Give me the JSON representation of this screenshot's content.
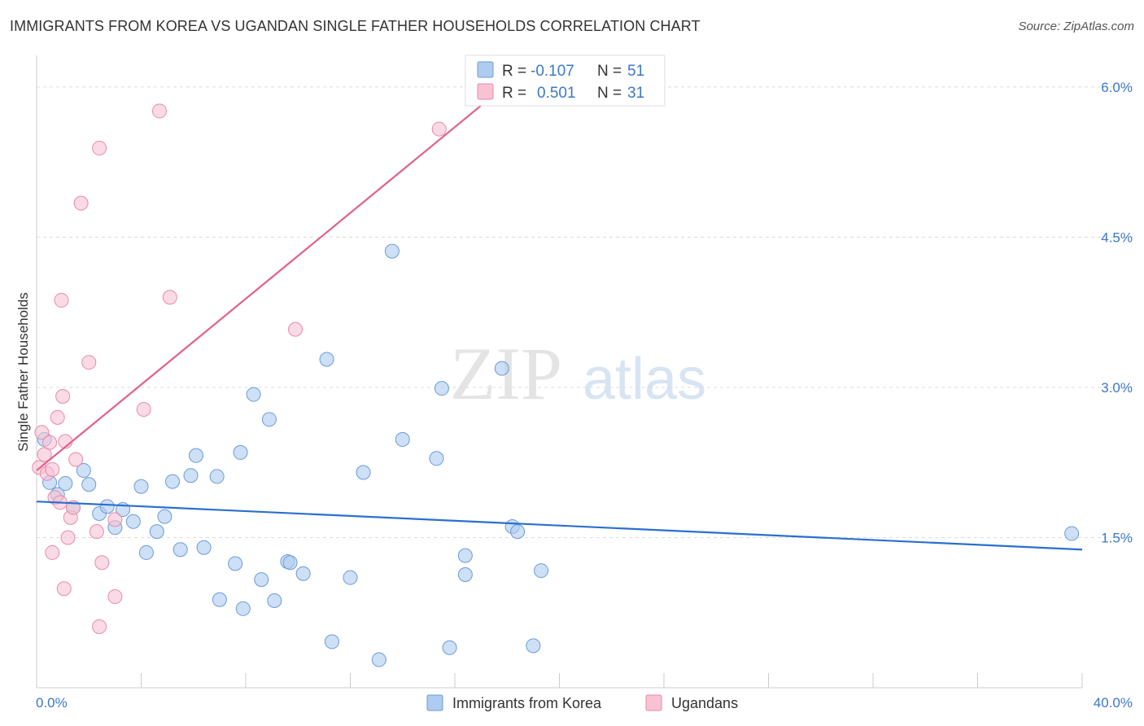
{
  "header": {
    "title": "IMMIGRANTS FROM KOREA VS UGANDAN SINGLE FATHER HOUSEHOLDS CORRELATION CHART",
    "source": "Source: ZipAtlas.com"
  },
  "watermark": {
    "zip": "ZIP",
    "atlas": "atlas"
  },
  "colors": {
    "korea_fill": "#aecbf0",
    "korea_stroke": "#6a9bd8",
    "korea_line": "#2a6fcf",
    "uganda_fill": "#f7c3d3",
    "uganda_stroke": "#e98aa8",
    "uganda_line": "#e0608a",
    "accent_text": "#3b78c8",
    "grid": "#dcdcdc"
  },
  "legend": {
    "rows": [
      {
        "r_label": "R =",
        "r_value": "-0.107",
        "n_label": "N =",
        "n_value": "51"
      },
      {
        "r_label": "R =",
        "r_value": "0.501",
        "n_label": "N =",
        "n_value": "31"
      }
    ]
  },
  "chart_data": {
    "type": "scatter",
    "title": "IMMIGRANTS FROM KOREA VS UGANDAN SINGLE FATHER HOUSEHOLDS CORRELATION CHART",
    "xlabel": "",
    "ylabel": "Single Father Households",
    "xlim": [
      0,
      40
    ],
    "ylim": [
      0,
      6.3
    ],
    "x_tick_labels": [
      "0.0%",
      "40.0%"
    ],
    "y_ticks": [
      1.5,
      3.0,
      4.5,
      6.0
    ],
    "y_tick_labels": [
      "1.5%",
      "3.0%",
      "4.5%",
      "6.0%"
    ],
    "grid": true,
    "legend_position": "top-center",
    "series": [
      {
        "name": "Immigrants from Korea",
        "r": -0.107,
        "n": 51,
        "trend": {
          "x": [
            0,
            40
          ],
          "y": [
            1.86,
            1.38
          ]
        },
        "points": [
          [
            0.3,
            2.48
          ],
          [
            0.5,
            2.05
          ],
          [
            0.8,
            1.93
          ],
          [
            1.1,
            2.04
          ],
          [
            1.4,
            1.8
          ],
          [
            1.8,
            2.17
          ],
          [
            2.0,
            2.03
          ],
          [
            2.4,
            1.74
          ],
          [
            2.7,
            1.81
          ],
          [
            3.0,
            1.6
          ],
          [
            3.3,
            1.78
          ],
          [
            3.7,
            1.66
          ],
          [
            4.0,
            2.01
          ],
          [
            4.2,
            1.35
          ],
          [
            4.6,
            1.56
          ],
          [
            4.9,
            1.71
          ],
          [
            5.2,
            2.06
          ],
          [
            5.5,
            1.38
          ],
          [
            5.9,
            2.12
          ],
          [
            6.1,
            2.32
          ],
          [
            6.4,
            1.4
          ],
          [
            6.9,
            2.11
          ],
          [
            7.0,
            0.88
          ],
          [
            7.6,
            1.24
          ],
          [
            7.8,
            2.35
          ],
          [
            7.9,
            0.79
          ],
          [
            8.3,
            2.93
          ],
          [
            8.6,
            1.08
          ],
          [
            8.9,
            2.68
          ],
          [
            9.1,
            0.87
          ],
          [
            9.6,
            1.26
          ],
          [
            9.7,
            1.25
          ],
          [
            10.2,
            1.14
          ],
          [
            11.1,
            3.28
          ],
          [
            11.3,
            0.46
          ],
          [
            12.0,
            1.1
          ],
          [
            12.5,
            2.15
          ],
          [
            13.1,
            0.28
          ],
          [
            13.6,
            4.36
          ],
          [
            14.0,
            2.48
          ],
          [
            15.3,
            2.29
          ],
          [
            15.5,
            2.99
          ],
          [
            15.8,
            0.4
          ],
          [
            16.4,
            1.32
          ],
          [
            16.4,
            1.13
          ],
          [
            17.8,
            3.19
          ],
          [
            18.2,
            1.61
          ],
          [
            18.4,
            1.56
          ],
          [
            19.0,
            0.42
          ],
          [
            19.3,
            1.17
          ],
          [
            39.6,
            1.54
          ]
        ]
      },
      {
        "name": "Ugandans",
        "r": 0.501,
        "n": 31,
        "trend": {
          "x": [
            0,
            17.4
          ],
          "y": [
            2.17,
            5.9
          ]
        },
        "points": [
          [
            0.1,
            2.2
          ],
          [
            0.2,
            2.55
          ],
          [
            0.3,
            2.33
          ],
          [
            0.4,
            2.14
          ],
          [
            0.5,
            2.45
          ],
          [
            0.6,
            2.18
          ],
          [
            0.7,
            1.9
          ],
          [
            0.8,
            2.7
          ],
          [
            0.9,
            1.85
          ],
          [
            0.95,
            3.87
          ],
          [
            1.0,
            2.91
          ],
          [
            1.1,
            2.46
          ],
          [
            1.2,
            1.5
          ],
          [
            1.3,
            1.7
          ],
          [
            1.4,
            1.8
          ],
          [
            1.5,
            2.28
          ],
          [
            1.7,
            4.84
          ],
          [
            2.0,
            3.25
          ],
          [
            2.3,
            1.56
          ],
          [
            2.4,
            5.39
          ],
          [
            2.4,
            0.61
          ],
          [
            2.5,
            1.25
          ],
          [
            3.0,
            1.68
          ],
          [
            3.0,
            0.91
          ],
          [
            4.1,
            2.78
          ],
          [
            4.7,
            5.76
          ],
          [
            5.1,
            3.9
          ],
          [
            9.9,
            3.58
          ],
          [
            15.4,
            5.58
          ],
          [
            0.6,
            1.35
          ],
          [
            1.05,
            0.99
          ]
        ]
      }
    ]
  },
  "bottom_legend": {
    "items": [
      {
        "label": "Immigrants from Korea"
      },
      {
        "label": "Ugandans"
      }
    ]
  }
}
